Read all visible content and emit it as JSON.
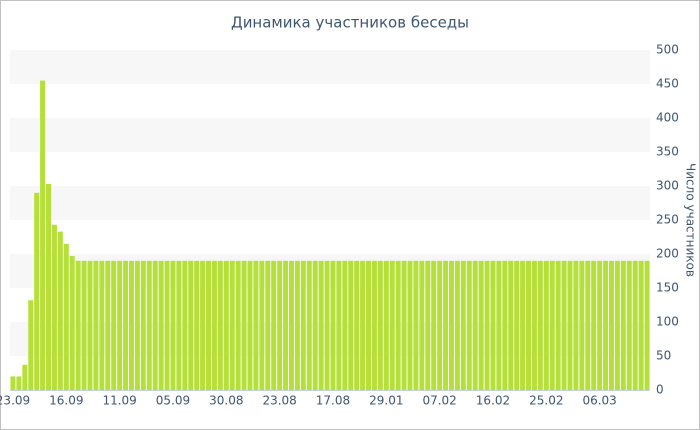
{
  "chart_data": {
    "type": "bar",
    "title": "Динамика участников беседы",
    "y_axis_label": "Число участников",
    "categories": [
      "23.09",
      null,
      null,
      null,
      null,
      null,
      null,
      null,
      null,
      "16.09",
      null,
      null,
      null,
      null,
      null,
      null,
      null,
      null,
      "11.09",
      null,
      null,
      null,
      null,
      null,
      null,
      null,
      null,
      "05.09",
      null,
      null,
      null,
      null,
      null,
      null,
      null,
      null,
      "30.08",
      null,
      null,
      null,
      null,
      null,
      null,
      null,
      null,
      "23.08",
      null,
      null,
      null,
      null,
      null,
      null,
      null,
      null,
      "17.08",
      null,
      null,
      null,
      null,
      null,
      null,
      null,
      null,
      "29.01",
      null,
      null,
      null,
      null,
      null,
      null,
      null,
      null,
      "07.02",
      null,
      null,
      null,
      null,
      null,
      null,
      null,
      null,
      "16.02",
      null,
      null,
      null,
      null,
      null,
      null,
      null,
      null,
      "25.02",
      null,
      null,
      null,
      null,
      null,
      null,
      null,
      null,
      "06.03",
      null,
      null,
      null,
      null,
      null,
      null,
      null,
      null
    ],
    "values": [
      20,
      20,
      37,
      132,
      290,
      455,
      303,
      243,
      233,
      215,
      197,
      190,
      190,
      190,
      190,
      190,
      190,
      190,
      190,
      190,
      190,
      190,
      190,
      190,
      190,
      190,
      190,
      190,
      190,
      190,
      190,
      190,
      190,
      190,
      190,
      190,
      190,
      190,
      190,
      190,
      190,
      190,
      190,
      190,
      190,
      190,
      190,
      190,
      190,
      190,
      190,
      190,
      190,
      190,
      190,
      190,
      190,
      190,
      190,
      190,
      190,
      190,
      190,
      190,
      190,
      190,
      190,
      190,
      190,
      190,
      190,
      190,
      190,
      190,
      190,
      190,
      190,
      190,
      190,
      190,
      190,
      190,
      190,
      190,
      190,
      190,
      190,
      190,
      190,
      190,
      190,
      190,
      190,
      190,
      190,
      190,
      190,
      190,
      190,
      190,
      190,
      190,
      190,
      190,
      190,
      190,
      190,
      190
    ],
    "color": "#b5e03a",
    "ylim": [
      0,
      500
    ],
    "yticks": [
      0,
      50,
      100,
      150,
      200,
      250,
      300,
      350,
      400,
      450,
      500
    ],
    "y_axis_side": "right",
    "grid": "bands"
  }
}
